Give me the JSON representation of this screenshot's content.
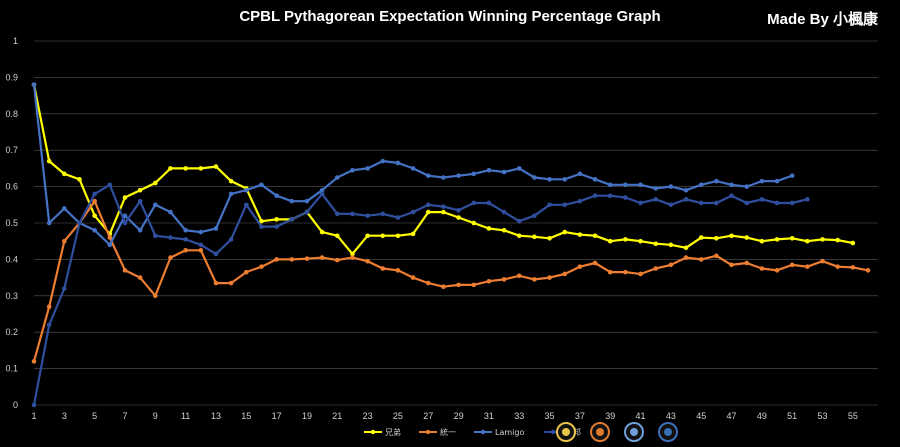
{
  "title": "CPBL Pythagorean Expectation Winning Percentage Graph",
  "credit": "Made By 小楓康",
  "chart_data": {
    "type": "line",
    "title": "CPBL Pythagorean Expectation Winning Percentage Graph",
    "xlabel": "",
    "ylabel": "",
    "ylim": [
      0,
      1
    ],
    "yticks": [
      "0",
      "0.1",
      "0.2",
      "0.3",
      "0.4",
      "0.5",
      "0.6",
      "0.7",
      "0.8",
      "0.9",
      "1"
    ],
    "xticks": [
      "1",
      "3",
      "5",
      "7",
      "9",
      "11",
      "13",
      "15",
      "17",
      "19",
      "21",
      "23",
      "25",
      "27",
      "29",
      "31",
      "33",
      "35",
      "37",
      "39",
      "41",
      "43",
      "45",
      "47",
      "49",
      "51",
      "53",
      "55"
    ],
    "grid": true,
    "legend_position": "bottom",
    "x": [
      1,
      2,
      3,
      4,
      5,
      6,
      7,
      8,
      9,
      10,
      11,
      12,
      13,
      14,
      15,
      16,
      17,
      18,
      19,
      20,
      21,
      22,
      23,
      24,
      25,
      26,
      27,
      28,
      29,
      30,
      31,
      32,
      33,
      34,
      35,
      36,
      37,
      38,
      39,
      40,
      41,
      42,
      43,
      44,
      45,
      46,
      47,
      48,
      49,
      50,
      51,
      52,
      53,
      54,
      55,
      56
    ],
    "series": [
      {
        "name": "兄弟",
        "color": "#ffff00",
        "values": [
          0.88,
          0.67,
          0.635,
          0.62,
          0.52,
          0.47,
          0.57,
          0.59,
          0.61,
          0.65,
          0.65,
          0.65,
          0.655,
          0.615,
          0.595,
          0.505,
          0.51,
          0.51,
          0.53,
          0.475,
          0.465,
          0.415,
          0.465,
          0.465,
          0.465,
          0.47,
          0.53,
          0.53,
          0.515,
          0.5,
          0.485,
          0.48,
          0.465,
          0.462,
          0.458,
          0.475,
          0.468,
          0.465,
          0.45,
          0.455,
          0.45,
          0.443,
          0.44,
          0.432,
          0.46,
          0.458,
          0.465,
          0.46,
          0.45,
          0.455,
          0.458,
          0.45,
          0.455,
          0.453,
          0.445,
          null
        ]
      },
      {
        "name": "統一",
        "color": "#ed7d31",
        "values": [
          0.12,
          0.27,
          0.45,
          0.5,
          0.56,
          0.46,
          0.37,
          0.35,
          0.3,
          0.405,
          0.425,
          0.425,
          0.335,
          0.335,
          0.365,
          0.38,
          0.4,
          0.4,
          0.402,
          0.405,
          0.398,
          0.405,
          0.395,
          0.375,
          0.37,
          0.35,
          0.335,
          0.325,
          0.33,
          0.33,
          0.34,
          0.345,
          0.355,
          0.345,
          0.35,
          0.36,
          0.38,
          0.39,
          0.365,
          0.365,
          0.36,
          0.375,
          0.385,
          0.405,
          0.4,
          0.41,
          0.385,
          0.39,
          0.375,
          0.37,
          0.385,
          0.38,
          0.395,
          0.38,
          0.378,
          0.37
        ]
      },
      {
        "name": "Lamigo",
        "color": "#4472c4",
        "values": [
          0.88,
          0.5,
          0.54,
          0.5,
          0.48,
          0.44,
          0.52,
          0.48,
          0.55,
          0.53,
          0.48,
          0.475,
          0.485,
          0.58,
          0.59,
          0.605,
          0.575,
          0.56,
          0.56,
          0.59,
          0.625,
          0.645,
          0.65,
          0.67,
          0.665,
          0.65,
          0.63,
          0.625,
          0.63,
          0.635,
          0.645,
          0.64,
          0.65,
          0.625,
          0.62,
          0.62,
          0.635,
          0.62,
          0.605,
          0.605,
          0.605,
          0.595,
          0.6,
          0.59,
          0.605,
          0.615,
          0.605,
          0.6,
          0.615,
          0.615,
          0.63,
          null,
          null,
          null,
          null,
          null
        ]
      },
      {
        "name": "富邦",
        "color": "#2f4f9e",
        "values": [
          0,
          0.22,
          0.32,
          0.5,
          0.58,
          0.605,
          0.5,
          0.56,
          0.465,
          0.46,
          0.455,
          0.44,
          0.415,
          0.455,
          0.55,
          0.49,
          0.49,
          0.51,
          0.53,
          0.58,
          0.525,
          0.525,
          0.52,
          0.525,
          0.515,
          0.53,
          0.55,
          0.545,
          0.535,
          0.555,
          0.555,
          0.53,
          0.505,
          0.52,
          0.55,
          0.55,
          0.56,
          0.575,
          0.575,
          0.57,
          0.555,
          0.565,
          0.55,
          0.565,
          0.555,
          0.555,
          0.575,
          0.555,
          0.565,
          0.555,
          0.555,
          0.565,
          null,
          null,
          null,
          null
        ]
      }
    ]
  },
  "legend_logos": [
    {
      "name": "brothers-logo",
      "color": "#e8c54a"
    },
    {
      "name": "lions-logo",
      "color": "#e07a2e"
    },
    {
      "name": "lamigo-logo",
      "color": "#6fa0d8"
    },
    {
      "name": "fubon-logo",
      "color": "#3b6fb6"
    }
  ]
}
